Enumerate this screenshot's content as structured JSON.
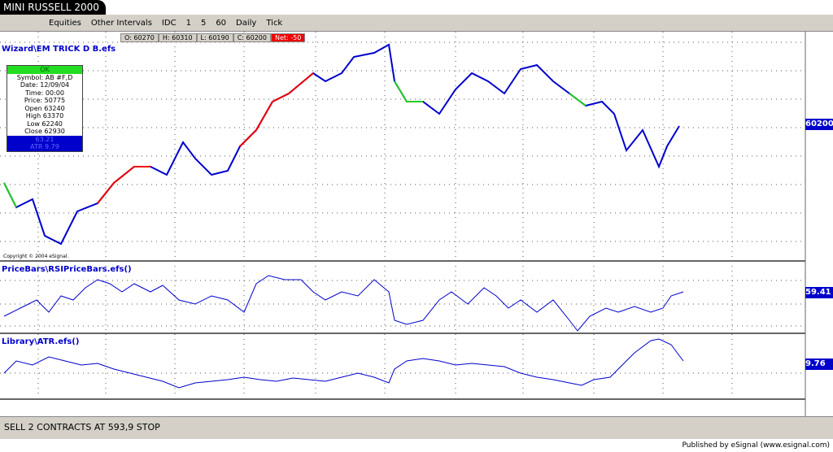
{
  "window": {
    "title": "MINI RUSSELL 2000"
  },
  "toolbar": {
    "items": [
      "Equities",
      "Other Intervals",
      "IDC",
      "1",
      "5",
      "60",
      "Daily",
      "Tick"
    ]
  },
  "quote": {
    "open": "O: 60270",
    "high": "H: 60310",
    "low": "L: 60190",
    "close": "C: 60200",
    "net": "Net: -50"
  },
  "panes": [
    {
      "title": "Wizard\\EM TRICK D B.efs",
      "last": "60200"
    },
    {
      "title": "PriceBars\\RSIPriceBars.efs()",
      "last": "59.41"
    },
    {
      "title": "Library\\ATR.efs()",
      "last": "9.76"
    }
  ],
  "data_window": {
    "button": "OK",
    "rows": [
      "Symbol: AB #F,D",
      "Date: 12/09/04",
      "Time: 00:00",
      "Price: 50775",
      "Open 63240",
      "High 63370",
      "Low 62240",
      "Close 62930"
    ],
    "highlight": [
      "63.21",
      "ATR 9.79"
    ]
  },
  "copyright": "Copyright © 2004 eSignal.",
  "status": "SELL 2 CONTRACTS AT 593,9 STOP",
  "footer": "Published by eSignal (www.esignal.com)"
}
